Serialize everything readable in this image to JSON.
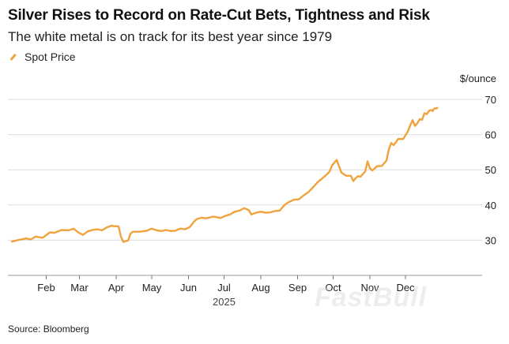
{
  "title": "Silver Rises to Record on Rate-Cut Bets, Tightness and Risk",
  "subtitle": "The white metal is on track for its best year since 1979",
  "legend": {
    "label": "Spot Price"
  },
  "source": "Source: Bloomberg",
  "watermark": "FastBull",
  "colors": {
    "line": "#f0a23c",
    "grid": "#dddddd",
    "axis": "#555555"
  },
  "chart_data": {
    "type": "line",
    "year_label": "2025",
    "ylabel": "$/ounce",
    "ylim": [
      20,
      70
    ],
    "yticks": [
      20,
      30,
      40,
      50,
      60,
      70
    ],
    "xlim": [
      0,
      361
    ],
    "months": [
      {
        "label": "Feb",
        "day": 31
      },
      {
        "label": "Mar",
        "day": 59
      },
      {
        "label": "Apr",
        "day": 90
      },
      {
        "label": "May",
        "day": 120
      },
      {
        "label": "Jun",
        "day": 151
      },
      {
        "label": "Jul",
        "day": 181
      },
      {
        "label": "Aug",
        "day": 212
      },
      {
        "label": "Sep",
        "day": 243
      },
      {
        "label": "Oct",
        "day": 273
      },
      {
        "label": "Nov",
        "day": 304
      },
      {
        "label": "Dec",
        "day": 334
      }
    ],
    "series": [
      {
        "name": "Spot Price",
        "x": [
          2,
          8,
          14,
          18,
          22,
          28,
          34,
          38,
          44,
          50,
          54,
          58,
          62,
          66,
          70,
          74,
          78,
          82,
          86,
          88,
          92,
          94,
          96,
          100,
          102,
          104,
          110,
          116,
          120,
          124,
          128,
          132,
          136,
          140,
          144,
          148,
          152,
          156,
          158,
          162,
          166,
          172,
          178,
          182,
          186,
          190,
          194,
          198,
          202,
          204,
          208,
          212,
          216,
          220,
          224,
          228,
          232,
          236,
          240,
          244,
          248,
          252,
          256,
          260,
          264,
          268,
          270,
          272,
          276,
          280,
          284,
          288,
          290,
          292,
          294,
          296,
          300,
          302,
          304,
          306,
          310,
          314,
          318,
          320,
          322,
          324,
          328,
          332,
          336,
          338,
          340,
          342,
          344,
          346,
          348,
          350,
          352,
          354,
          356,
          357,
          358,
          359,
          360,
          361
        ],
        "y": [
          29.6,
          30.1,
          30.5,
          30.2,
          31,
          30.7,
          32.2,
          32.1,
          32.9,
          32.8,
          33.3,
          32.2,
          31.5,
          32.5,
          32.9,
          33.1,
          32.8,
          33.6,
          34.1,
          34,
          33.9,
          31,
          29.5,
          29.9,
          31.8,
          32.4,
          32.4,
          32.7,
          33.3,
          32.8,
          32.6,
          32.9,
          32.6,
          32.7,
          33.3,
          33.1,
          33.7,
          35.4,
          36,
          36.4,
          36.2,
          36.7,
          36.3,
          36.9,
          37.3,
          38.1,
          38.4,
          39.1,
          38.5,
          37.3,
          37.8,
          38.1,
          37.8,
          37.9,
          38.3,
          38.4,
          40,
          40.9,
          41.5,
          41.6,
          42.7,
          43.6,
          45,
          46.5,
          47.6,
          48.8,
          49.5,
          51.2,
          52.8,
          49.2,
          48.3,
          48.3,
          46.8,
          47.6,
          48.2,
          48,
          49.5,
          52.4,
          50.4,
          49.8,
          51,
          51.1,
          52.6,
          55.8,
          57.6,
          57,
          58.8,
          58.7,
          60.9,
          62.6,
          64.1,
          62.5,
          63.2,
          64.4,
          64.2,
          66.1,
          65.8,
          66.8,
          67,
          66.7,
          67.3,
          67.5,
          67.4,
          67.6
        ]
      }
    ]
  }
}
